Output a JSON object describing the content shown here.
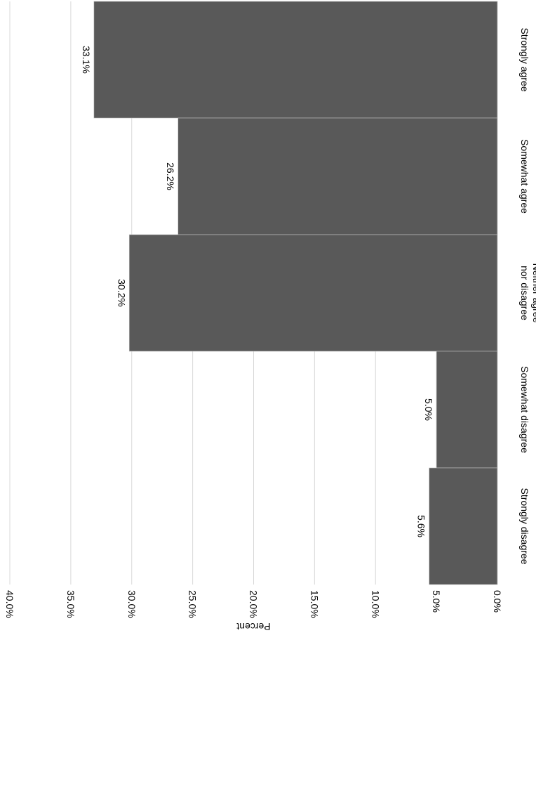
{
  "chart_data": {
    "type": "bar",
    "orientation": "horizontal",
    "categories": [
      "Strongly agree",
      "Somewhat agree",
      "Neither agree nor disagree",
      "Somewhat disagree",
      "Strongly disagree"
    ],
    "category_lines": [
      [
        "Strongly agree"
      ],
      [
        "Somewhat agree"
      ],
      [
        "Neither agree",
        "nor disagree"
      ],
      [
        "Somewhat disagree"
      ],
      [
        "Strongly disagree"
      ]
    ],
    "values": [
      33.1,
      26.2,
      30.2,
      5.0,
      5.6
    ],
    "data_labels": [
      "33.1%",
      "26.2%",
      "30.2%",
      "5.0%",
      "5.6%"
    ],
    "ylabel": "Percent",
    "ylim": [
      0,
      40
    ],
    "ticks": [
      0,
      5,
      10,
      15,
      20,
      25,
      30,
      35,
      40
    ],
    "tick_labels": [
      "0.0%",
      "5.0%",
      "10.0%",
      "15.0%",
      "20.0%",
      "25.0%",
      "30.0%",
      "35.0%",
      "40.0%"
    ],
    "grid": true,
    "colors": {
      "bar": "#595959",
      "grid": "#d9d9d9",
      "bar_edge": "#bfbfbf"
    }
  }
}
